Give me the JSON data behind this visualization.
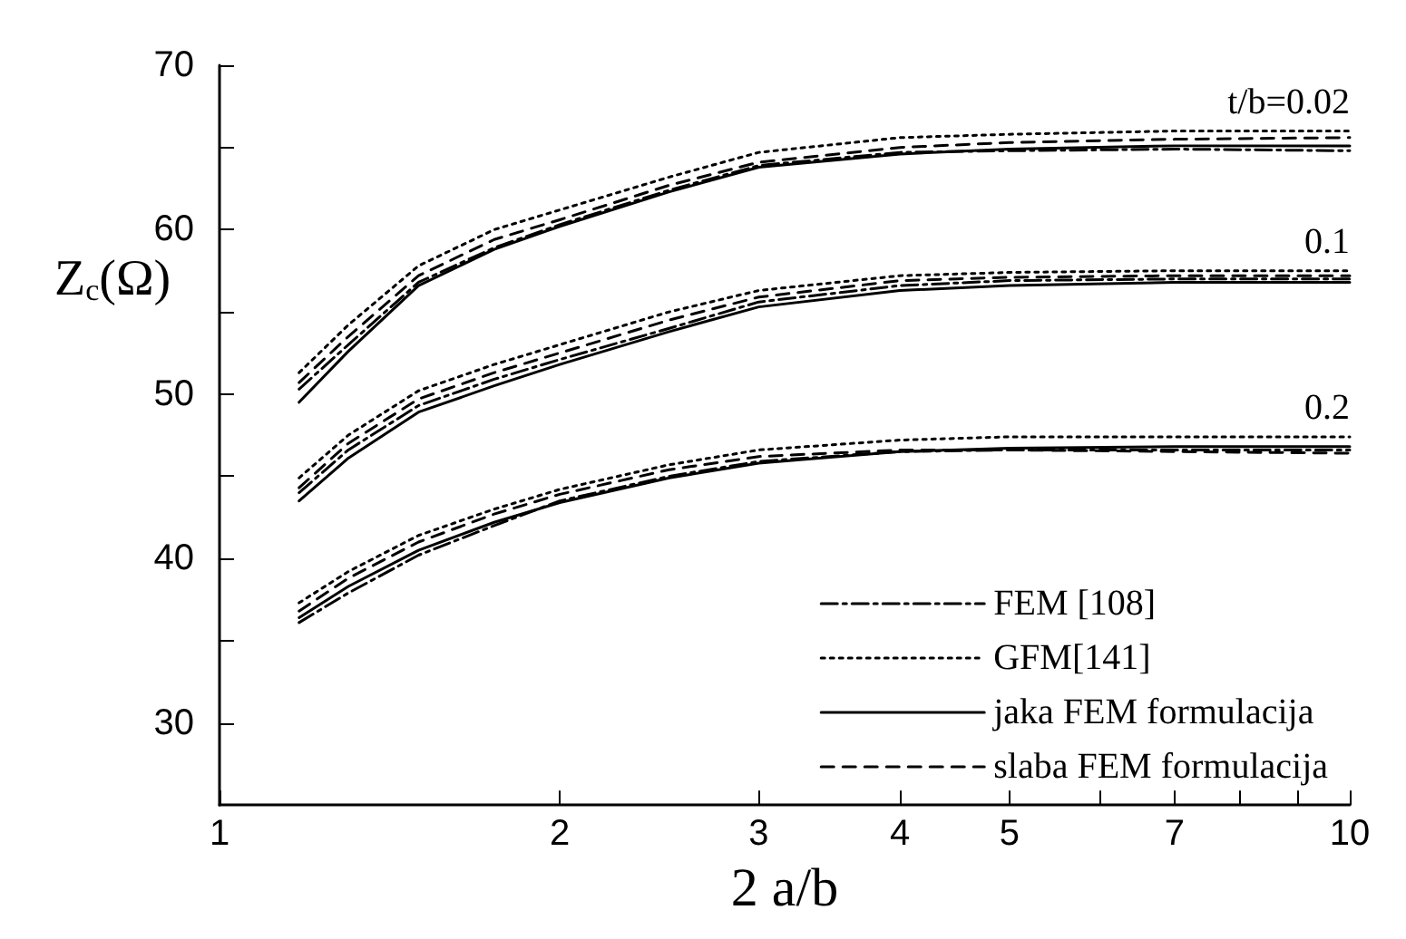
{
  "chart_data": {
    "type": "line",
    "xlabel": "2 a/b",
    "ylabel": "Z$_{c}$(Ω)",
    "log": "x",
    "xlim": [
      1,
      10
    ],
    "xticks": [
      1,
      2,
      3,
      4,
      5,
      {
        "value": 6,
        "label": null
      },
      7,
      {
        "value": 8,
        "label": null
      },
      {
        "value": 9,
        "label": null
      },
      10
    ],
    "ylim": [
      25,
      70
    ],
    "yticks": [
      30,
      {
        "value": 35,
        "label": null
      },
      40,
      {
        "value": 45,
        "label": null
      },
      50,
      {
        "value": 55,
        "label": null
      },
      60,
      {
        "value": 65,
        "label": null
      },
      70
    ],
    "x": [
      1.176,
      1.3,
      1.5,
      1.75,
      2,
      2.5,
      3,
      4,
      5,
      7,
      10
    ],
    "grid": false,
    "legend": "bottom right",
    "marker": "none",
    "series": [
      {
        "name": "FEM [108]",
        "color": "#000000",
        "line_style": "dashdot",
        "values": [
          50.3,
          53,
          56.8,
          58.9,
          60.3,
          62.4,
          63.9,
          64.7,
          64.8,
          64.9,
          64.8
        ]
      },
      {
        "name": "GFM[141]",
        "color": "#000000",
        "line_style": "dotted",
        "values": [
          51.3,
          54.2,
          57.8,
          60,
          61.2,
          63.2,
          64.7,
          65.6,
          65.8,
          66,
          66
        ]
      },
      {
        "name": "jaka FEM formulacija",
        "color": "#000000",
        "line_style": "solid",
        "values": [
          49.5,
          52.6,
          56.6,
          58.8,
          60.2,
          62.3,
          63.8,
          64.6,
          64.9,
          65.1,
          65.1
        ]
      },
      {
        "name": "slaba FEM formulacija",
        "color": "#000000",
        "line_style": "dashed",
        "values": [
          50.7,
          53.5,
          57.2,
          59.4,
          60.6,
          62.7,
          64.1,
          65,
          65.3,
          65.5,
          65.6
        ]
      },
      {
        "color": "#000000",
        "line_style": "dashdot",
        "values": [
          44,
          46.6,
          49.3,
          50.9,
          52.1,
          54,
          55.6,
          56.6,
          56.9,
          57,
          57
        ]
      },
      {
        "color": "#000000",
        "line_style": "dotted",
        "values": [
          44.9,
          47.5,
          50.2,
          51.8,
          53,
          55,
          56.3,
          57.2,
          57.4,
          57.5,
          57.5
        ]
      },
      {
        "color": "#000000",
        "line_style": "solid",
        "values": [
          43.5,
          46.1,
          48.9,
          50.5,
          51.8,
          53.8,
          55.3,
          56.3,
          56.6,
          56.8,
          56.8
        ]
      },
      {
        "color": "#000000",
        "line_style": "dashed",
        "values": [
          44.3,
          47,
          49.7,
          51.3,
          52.5,
          54.5,
          55.9,
          56.9,
          57.1,
          57.2,
          57.2
        ]
      },
      {
        "color": "#000000",
        "line_style": "dashdot",
        "values": [
          36.1,
          37.9,
          40.2,
          42,
          43.5,
          45,
          45.9,
          46.5,
          46.6,
          46.6,
          46.6
        ]
      },
      {
        "color": "#000000",
        "line_style": "dotted",
        "values": [
          37.3,
          39.2,
          41.4,
          43,
          44.2,
          45.7,
          46.6,
          47.2,
          47.4,
          47.4,
          47.4
        ]
      },
      {
        "color": "#000000",
        "line_style": "solid",
        "values": [
          36.4,
          38.3,
          40.5,
          42.2,
          43.4,
          44.9,
          45.8,
          46.5,
          46.7,
          46.8,
          46.8
        ]
      },
      {
        "color": "#000000",
        "line_style": "dashed",
        "values": [
          36.8,
          38.8,
          41,
          42.7,
          43.9,
          45.4,
          46.2,
          46.6,
          46.6,
          46.5,
          46.4
        ]
      }
    ],
    "annotations": [
      "t/b=0.02",
      "0.1",
      "0.2"
    ]
  }
}
